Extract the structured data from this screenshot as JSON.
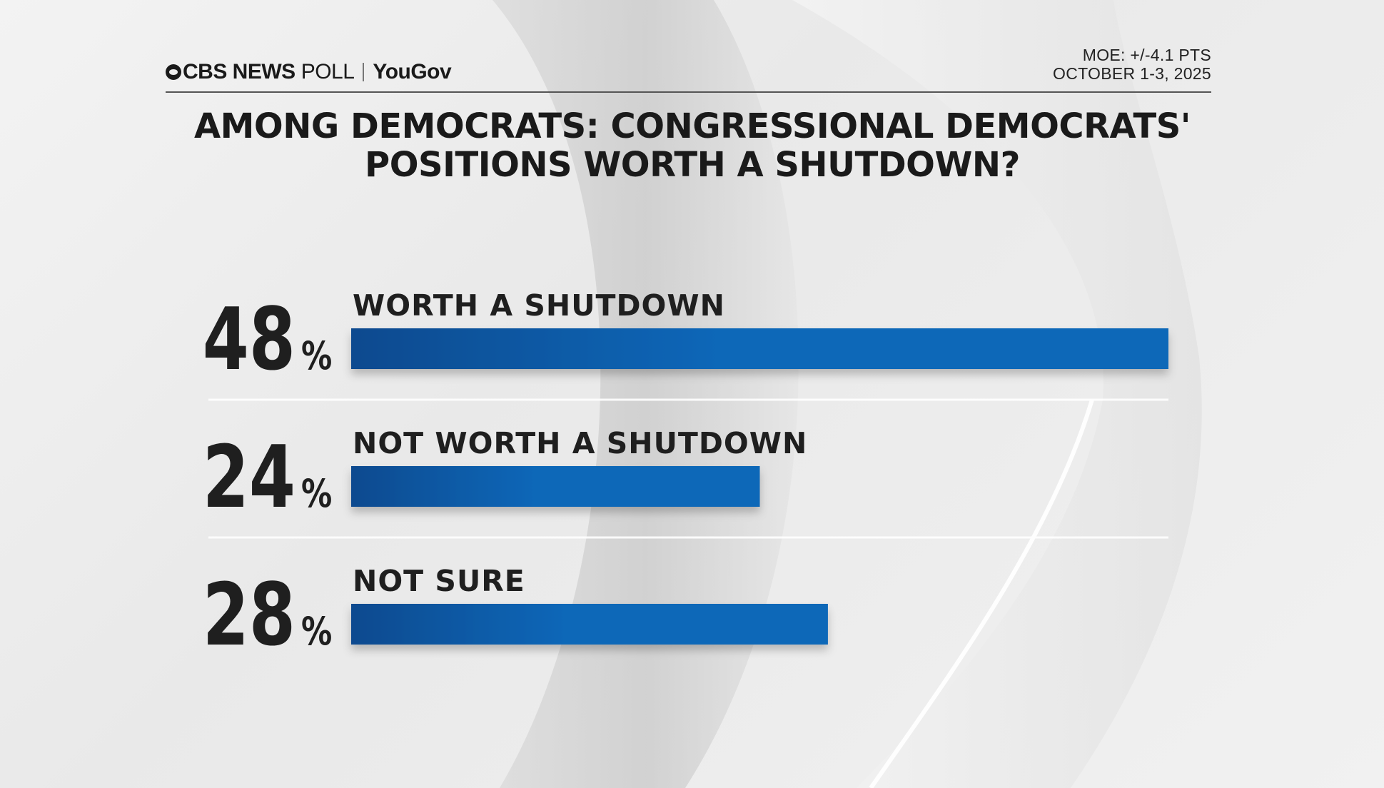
{
  "header": {
    "brand_cbs": "CBS NEWS",
    "brand_poll": "POLL",
    "brand_yougov": "YouGov",
    "moe": "MOE: +/-4.1 PTS",
    "date": "OCTOBER 1-3, 2025"
  },
  "colors": {
    "bar_dark": "#0a4a8f",
    "bar_light": "#0a67b8",
    "text": "#1f1f1f"
  },
  "chart_data": {
    "type": "bar",
    "orientation": "horizontal",
    "title_line1": "AMONG DEMOCRATS: CONGRESSIONAL DEMOCRATS'",
    "title_line2": "POSITIONS WORTH A SHUTDOWN?",
    "categories": [
      "WORTH A SHUTDOWN",
      "NOT WORTH A SHUTDOWN",
      "NOT SURE"
    ],
    "values": [
      48,
      24,
      28
    ],
    "value_labels": [
      "48",
      "24",
      "28"
    ],
    "unit": "%",
    "xlim": [
      0,
      48
    ]
  }
}
